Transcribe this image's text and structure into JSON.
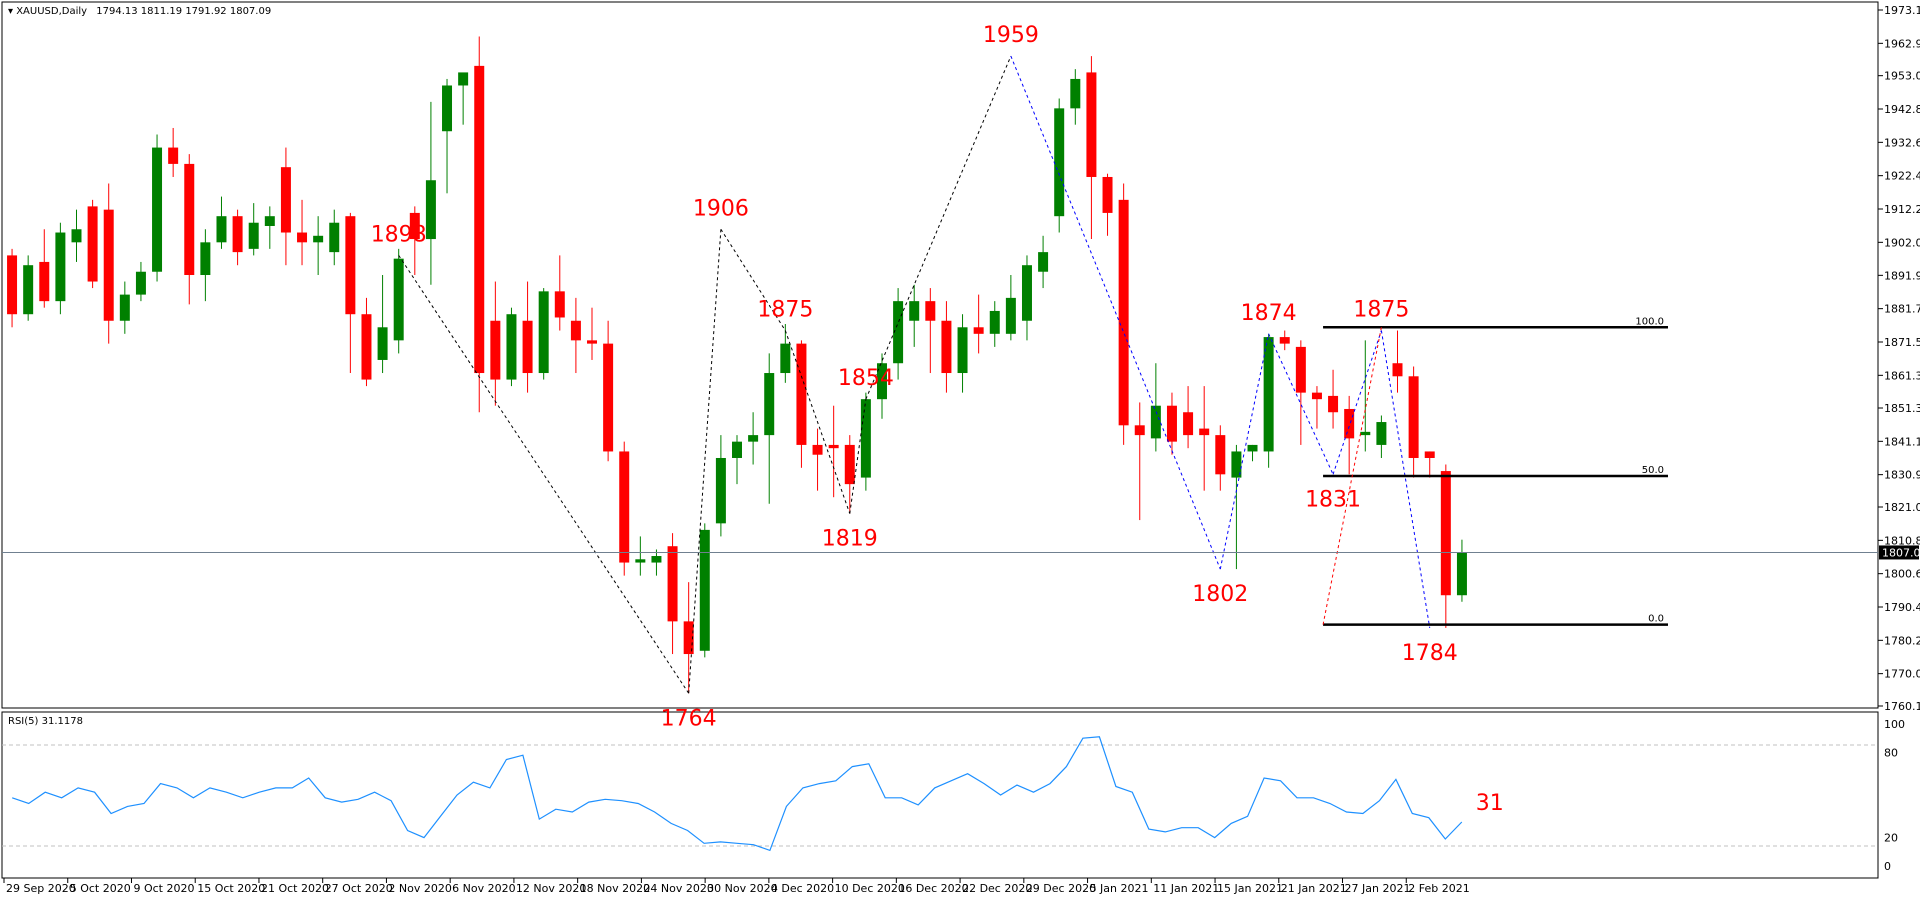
{
  "chart_header": {
    "symbol": "XAUUSD,Daily",
    "ohlc": "1794.13 1811.19 1791.92 1807.09"
  },
  "rsi_header": {
    "label": "RSI(5) 31.1178"
  },
  "price_axis": {
    "ticks": [
      "1973.10",
      "1962.90",
      "1953.00",
      "1942.80",
      "1932.60",
      "1922.40",
      "1912.20",
      "1902.00",
      "1891.90",
      "1881.70",
      "1871.50",
      "1861.30",
      "1851.30",
      "1841.10",
      "1830.90",
      "1821.00",
      "1810.80",
      "1800.60",
      "1790.40",
      "1780.20",
      "1770.00",
      "1760.10"
    ],
    "current_price": "1807.09"
  },
  "rsi_axis": {
    "ticks": [
      "100",
      "80",
      "20",
      "0"
    ]
  },
  "date_axis": {
    "labels": [
      "29 Sep 2020",
      "5 Oct 2020",
      "9 Oct 2020",
      "15 Oct 2020",
      "21 Oct 2020",
      "27 Oct 2020",
      "2 Nov 2020",
      "6 Nov 2020",
      "12 Nov 2020",
      "18 Nov 2020",
      "24 Nov 2020",
      "30 Nov 2020",
      "4 Dec 2020",
      "10 Dec 2020",
      "16 Dec 2020",
      "22 Dec 2020",
      "29 Dec 2020",
      "5 Jan 2021",
      "11 Jan 2021",
      "15 Jan 2021",
      "21 Jan 2021",
      "27 Jan 2021",
      "2 Feb 2021"
    ]
  },
  "pivot_labels": [
    "1898",
    "1906",
    "1959",
    "1875",
    "1854",
    "1819",
    "1764",
    "1874",
    "1875",
    "1831",
    "1802",
    "1784",
    "31"
  ],
  "fib_levels": [
    "100.0",
    "50.0",
    "0.0"
  ],
  "colors": {
    "bull": "#008000",
    "bear": "#ff0000",
    "zigzag_black": "#000000",
    "zigzag_blue": "#0000ff",
    "rsi_line": "#1e90ff",
    "pivot_text": "#ff0000"
  },
  "chart_data": {
    "type": "candlestick",
    "title": "XAUUSD,Daily",
    "ylim": [
      1760.1,
      1973.1
    ],
    "candles": [
      {
        "o": 1898,
        "h": 1900,
        "c": 1880,
        "l": 1876
      },
      {
        "o": 1880,
        "h": 1898,
        "c": 1895,
        "l": 1878
      },
      {
        "o": 1896,
        "h": 1906,
        "c": 1884,
        "l": 1882
      },
      {
        "o": 1884,
        "h": 1908,
        "c": 1905,
        "l": 1880
      },
      {
        "o": 1902,
        "h": 1912,
        "c": 1906,
        "l": 1896
      },
      {
        "o": 1913,
        "h": 1915,
        "c": 1890,
        "l": 1888
      },
      {
        "o": 1912,
        "h": 1920,
        "c": 1878,
        "l": 1871
      },
      {
        "o": 1878,
        "h": 1890,
        "c": 1886,
        "l": 1874
      },
      {
        "o": 1886,
        "h": 1896,
        "c": 1893,
        "l": 1884
      },
      {
        "o": 1893,
        "h": 1935,
        "c": 1931,
        "l": 1890
      },
      {
        "o": 1931,
        "h": 1937,
        "c": 1926,
        "l": 1922
      },
      {
        "o": 1926,
        "h": 1929,
        "c": 1892,
        "l": 1883
      },
      {
        "o": 1892,
        "h": 1906,
        "c": 1902,
        "l": 1884
      },
      {
        "o": 1902,
        "h": 1916,
        "c": 1910,
        "l": 1900
      },
      {
        "o": 1910,
        "h": 1912,
        "c": 1899,
        "l": 1895
      },
      {
        "o": 1900,
        "h": 1914,
        "c": 1908,
        "l": 1898
      },
      {
        "o": 1907,
        "h": 1913,
        "c": 1910,
        "l": 1900
      },
      {
        "o": 1925,
        "h": 1931,
        "c": 1905,
        "l": 1895
      },
      {
        "o": 1905,
        "h": 1915,
        "c": 1902,
        "l": 1895
      },
      {
        "o": 1902,
        "h": 1910,
        "c": 1904,
        "l": 1892
      },
      {
        "o": 1899,
        "h": 1912,
        "c": 1908,
        "l": 1895
      },
      {
        "o": 1910,
        "h": 1911,
        "c": 1880,
        "l": 1862
      },
      {
        "o": 1880,
        "h": 1885,
        "c": 1860,
        "l": 1858
      },
      {
        "o": 1866,
        "h": 1892,
        "c": 1876,
        "l": 1862
      },
      {
        "o": 1872,
        "h": 1900,
        "c": 1897,
        "l": 1868
      },
      {
        "o": 1911,
        "h": 1913,
        "c": 1903,
        "l": 1892
      },
      {
        "o": 1903,
        "h": 1945,
        "c": 1921,
        "l": 1889
      },
      {
        "o": 1936,
        "h": 1952,
        "c": 1950,
        "l": 1917
      },
      {
        "o": 1950,
        "h": 1953,
        "c": 1954,
        "l": 1938
      },
      {
        "o": 1956,
        "h": 1965,
        "c": 1862,
        "l": 1850
      },
      {
        "o": 1878,
        "h": 1890,
        "c": 1860,
        "l": 1852
      },
      {
        "o": 1860,
        "h": 1882,
        "c": 1880,
        "l": 1858
      },
      {
        "o": 1878,
        "h": 1890,
        "c": 1862,
        "l": 1856
      },
      {
        "o": 1862,
        "h": 1888,
        "c": 1887,
        "l": 1860
      },
      {
        "o": 1887,
        "h": 1898,
        "c": 1879,
        "l": 1875
      },
      {
        "o": 1878,
        "h": 1885,
        "c": 1872,
        "l": 1862
      },
      {
        "o": 1872,
        "h": 1882,
        "c": 1871,
        "l": 1866
      },
      {
        "o": 1871,
        "h": 1878,
        "c": 1838,
        "l": 1835
      },
      {
        "o": 1838,
        "h": 1841,
        "c": 1804,
        "l": 1800
      },
      {
        "o": 1804,
        "h": 1812,
        "c": 1805,
        "l": 1800
      },
      {
        "o": 1804,
        "h": 1808,
        "c": 1806,
        "l": 1800
      },
      {
        "o": 1809,
        "h": 1813,
        "c": 1786,
        "l": 1776
      },
      {
        "o": 1786,
        "h": 1798,
        "c": 1776,
        "l": 1764
      },
      {
        "o": 1777,
        "h": 1816,
        "c": 1814,
        "l": 1775
      },
      {
        "o": 1816,
        "h": 1843,
        "c": 1836,
        "l": 1812
      },
      {
        "o": 1836,
        "h": 1843,
        "c": 1841,
        "l": 1828
      },
      {
        "o": 1841,
        "h": 1850,
        "c": 1843,
        "l": 1834
      },
      {
        "o": 1843,
        "h": 1868,
        "c": 1862,
        "l": 1822
      },
      {
        "o": 1862,
        "h": 1877,
        "c": 1871,
        "l": 1859
      },
      {
        "o": 1871,
        "h": 1872,
        "c": 1840,
        "l": 1833
      },
      {
        "o": 1840,
        "h": 1845,
        "c": 1837,
        "l": 1826
      },
      {
        "o": 1840,
        "h": 1852,
        "c": 1839,
        "l": 1824
      },
      {
        "o": 1840,
        "h": 1843,
        "c": 1828,
        "l": 1819
      },
      {
        "o": 1830,
        "h": 1856,
        "c": 1854,
        "l": 1826
      },
      {
        "o": 1854,
        "h": 1868,
        "c": 1865,
        "l": 1848
      },
      {
        "o": 1865,
        "h": 1888,
        "c": 1884,
        "l": 1860
      },
      {
        "o": 1878,
        "h": 1889,
        "c": 1884,
        "l": 1870
      },
      {
        "o": 1884,
        "h": 1888,
        "c": 1878,
        "l": 1862
      },
      {
        "o": 1878,
        "h": 1884,
        "c": 1862,
        "l": 1856
      },
      {
        "o": 1862,
        "h": 1880,
        "c": 1876,
        "l": 1856
      },
      {
        "o": 1876,
        "h": 1886,
        "c": 1874,
        "l": 1868
      },
      {
        "o": 1874,
        "h": 1884,
        "c": 1881,
        "l": 1870
      },
      {
        "o": 1874,
        "h": 1892,
        "c": 1885,
        "l": 1872
      },
      {
        "o": 1878,
        "h": 1898,
        "c": 1895,
        "l": 1872
      },
      {
        "o": 1893,
        "h": 1904,
        "c": 1899,
        "l": 1888
      },
      {
        "o": 1910,
        "h": 1946,
        "c": 1943,
        "l": 1905
      },
      {
        "o": 1943,
        "h": 1955,
        "c": 1952,
        "l": 1938
      },
      {
        "o": 1954,
        "h": 1959,
        "c": 1922,
        "l": 1903
      },
      {
        "o": 1922,
        "h": 1923,
        "c": 1911,
        "l": 1904
      },
      {
        "o": 1915,
        "h": 1920,
        "c": 1846,
        "l": 1840
      },
      {
        "o": 1846,
        "h": 1853,
        "c": 1843,
        "l": 1817
      },
      {
        "o": 1842,
        "h": 1865,
        "c": 1852,
        "l": 1838
      },
      {
        "o": 1852,
        "h": 1856,
        "c": 1841,
        "l": 1837
      },
      {
        "o": 1850,
        "h": 1858,
        "c": 1843,
        "l": 1839
      },
      {
        "o": 1845,
        "h": 1858,
        "c": 1843,
        "l": 1826
      },
      {
        "o": 1843,
        "h": 1846,
        "c": 1831,
        "l": 1826
      },
      {
        "o": 1830,
        "h": 1840,
        "c": 1838,
        "l": 1802
      },
      {
        "o": 1838,
        "h": 1840,
        "c": 1840,
        "l": 1835
      },
      {
        "o": 1838,
        "h": 1874,
        "c": 1873,
        "l": 1833
      },
      {
        "o": 1873,
        "h": 1875,
        "c": 1871,
        "l": 1869
      },
      {
        "o": 1870,
        "h": 1872,
        "c": 1856,
        "l": 1840
      },
      {
        "o": 1856,
        "h": 1858,
        "c": 1854,
        "l": 1845
      },
      {
        "o": 1855,
        "h": 1863,
        "c": 1850,
        "l": 1845
      },
      {
        "o": 1851,
        "h": 1855,
        "c": 1842,
        "l": 1831
      },
      {
        "o": 1843,
        "h": 1872,
        "c": 1844,
        "l": 1838
      },
      {
        "o": 1840,
        "h": 1849,
        "c": 1847,
        "l": 1836
      },
      {
        "o": 1865,
        "h": 1875,
        "c": 1861,
        "l": 1856
      },
      {
        "o": 1861,
        "h": 1864,
        "c": 1836,
        "l": 1830
      },
      {
        "o": 1838,
        "h": 1838,
        "c": 1836,
        "l": 1830
      },
      {
        "o": 1832,
        "h": 1834,
        "c": 1794,
        "l": 1784
      },
      {
        "o": 1794,
        "h": 1811,
        "c": 1807,
        "l": 1792
      }
    ],
    "pivots": [
      {
        "label": "1898",
        "index": 24,
        "price": 1898
      },
      {
        "label": "1906",
        "index": 44,
        "price": 1906
      },
      {
        "label": "1959",
        "index": 62,
        "price": 1959
      },
      {
        "label": "1875",
        "index": 48,
        "price": 1875
      },
      {
        "label": "1854",
        "index": 53,
        "price": 1854
      },
      {
        "label": "1819",
        "index": 52,
        "price": 1819
      },
      {
        "label": "1764",
        "index": 42,
        "price": 1764
      },
      {
        "label": "1874",
        "index": 78,
        "price": 1874
      },
      {
        "label": "1875",
        "index": 85,
        "price": 1875
      },
      {
        "label": "1831",
        "index": 82,
        "price": 1831
      },
      {
        "label": "1802",
        "index": 75,
        "price": 1802
      },
      {
        "label": "1784",
        "index": 88,
        "price": 1784
      }
    ],
    "fibonacci": [
      {
        "level": "100.0",
        "price": 1876
      },
      {
        "level": "50.0",
        "price": 1830.5
      },
      {
        "level": "0.0",
        "price": 1785
      }
    ],
    "rsi": {
      "ylim": [
        0,
        100
      ],
      "period": 5,
      "last": 31.1178,
      "values": [
        48,
        44,
        52,
        48,
        55,
        52,
        37,
        42,
        44,
        58,
        55,
        48,
        55,
        52,
        48,
        52,
        55,
        55,
        62,
        48,
        45,
        47,
        52,
        46,
        25,
        20,
        35,
        50,
        59,
        55,
        75,
        78,
        33,
        40,
        38,
        45,
        47,
        46,
        44,
        38,
        30,
        25,
        16,
        17,
        16,
        15,
        11,
        42,
        55,
        58,
        60,
        70,
        72,
        48,
        48,
        43,
        55,
        60,
        65,
        58,
        50,
        57,
        52,
        58,
        70,
        90,
        91,
        56,
        52,
        26,
        24,
        27,
        27,
        20,
        30,
        35,
        62,
        60,
        48,
        48,
        44,
        38,
        37,
        46,
        61,
        37,
        34,
        19,
        31
      ]
    }
  }
}
